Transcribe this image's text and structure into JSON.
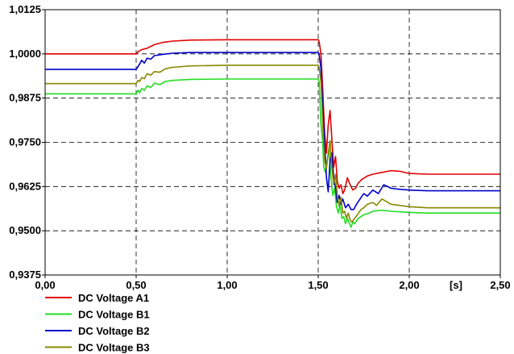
{
  "chart_data": {
    "type": "line",
    "title": "",
    "xlabel": "[s]",
    "ylabel": "",
    "xlim": [
      0,
      2.5
    ],
    "ylim": [
      0.9375,
      1.0125
    ],
    "grid": true,
    "legend_position": "bottom-left",
    "x_ticks": [
      {
        "value": 0.0,
        "label": "0,00"
      },
      {
        "value": 0.5,
        "label": "0,50"
      },
      {
        "value": 1.0,
        "label": "1,00"
      },
      {
        "value": 1.5,
        "label": "1,50"
      },
      {
        "value": 2.0,
        "label": "2,00"
      },
      {
        "value": 2.5,
        "label": "2,50"
      }
    ],
    "y_ticks": [
      {
        "value": 0.9375,
        "label": "0,9375"
      },
      {
        "value": 0.95,
        "label": "0,9500"
      },
      {
        "value": 0.9625,
        "label": "0,9625"
      },
      {
        "value": 0.975,
        "label": "0,9750"
      },
      {
        "value": 0.9875,
        "label": "0,9875"
      },
      {
        "value": 1.0,
        "label": "1,0000"
      },
      {
        "value": 1.0125,
        "label": "1,0125"
      }
    ],
    "series": [
      {
        "name": "DC Voltage A1",
        "color": "#e00000",
        "points": [
          [
            0,
            1.0
          ],
          [
            0.5,
            1.0
          ],
          [
            0.51,
            1.0006
          ],
          [
            0.53,
            1.0012
          ],
          [
            0.56,
            1.0016
          ],
          [
            0.6,
            1.0026
          ],
          [
            0.65,
            1.0033
          ],
          [
            0.7,
            1.0036
          ],
          [
            0.8,
            1.0039
          ],
          [
            1.0,
            1.004
          ],
          [
            1.5,
            1.004
          ],
          [
            1.505,
            1.0035
          ],
          [
            1.515,
            1.0
          ],
          [
            1.525,
            0.99
          ],
          [
            1.535,
            0.978
          ],
          [
            1.545,
            0.972
          ],
          [
            1.555,
            0.98
          ],
          [
            1.565,
            0.984
          ],
          [
            1.575,
            0.976
          ],
          [
            1.585,
            0.968
          ],
          [
            1.595,
            0.971
          ],
          [
            1.605,
            0.964
          ],
          [
            1.615,
            0.962
          ],
          [
            1.625,
            0.963
          ],
          [
            1.635,
            0.9605
          ],
          [
            1.645,
            0.9615
          ],
          [
            1.66,
            0.965
          ],
          [
            1.675,
            0.963
          ],
          [
            1.69,
            0.9615
          ],
          [
            1.705,
            0.962
          ],
          [
            1.72,
            0.9635
          ],
          [
            1.74,
            0.9645
          ],
          [
            1.77,
            0.9655
          ],
          [
            1.8,
            0.966
          ],
          [
            1.85,
            0.9665
          ],
          [
            1.9,
            0.967
          ],
          [
            1.95,
            0.9668
          ],
          [
            2.0,
            0.9662
          ],
          [
            2.1,
            0.966
          ],
          [
            2.5,
            0.966
          ]
        ]
      },
      {
        "name": "DC Voltage B1",
        "color": "#22dd22",
        "points": [
          [
            0,
            0.9887
          ],
          [
            0.5,
            0.9887
          ],
          [
            0.51,
            0.9897
          ],
          [
            0.52,
            0.989
          ],
          [
            0.53,
            0.9902
          ],
          [
            0.545,
            0.9897
          ],
          [
            0.56,
            0.991
          ],
          [
            0.58,
            0.9905
          ],
          [
            0.6,
            0.9917
          ],
          [
            0.63,
            0.9913
          ],
          [
            0.66,
            0.9922
          ],
          [
            0.7,
            0.9925
          ],
          [
            0.8,
            0.9928
          ],
          [
            1.0,
            0.9929
          ],
          [
            1.5,
            0.9929
          ],
          [
            1.505,
            0.9922
          ],
          [
            1.515,
            0.98
          ],
          [
            1.525,
            0.975
          ],
          [
            1.53,
            0.968
          ],
          [
            1.54,
            0.9665
          ],
          [
            1.55,
            0.97
          ],
          [
            1.56,
            0.973
          ],
          [
            1.57,
            0.965
          ],
          [
            1.58,
            0.96
          ],
          [
            1.59,
            0.962
          ],
          [
            1.6,
            0.957
          ],
          [
            1.61,
            0.955
          ],
          [
            1.62,
            0.9575
          ],
          [
            1.63,
            0.9535
          ],
          [
            1.64,
            0.954
          ],
          [
            1.65,
            0.952
          ],
          [
            1.66,
            0.9535
          ],
          [
            1.67,
            0.9522
          ],
          [
            1.68,
            0.951
          ],
          [
            1.69,
            0.9525
          ],
          [
            1.7,
            0.952
          ],
          [
            1.72,
            0.9535
          ],
          [
            1.75,
            0.9545
          ],
          [
            1.78,
            0.955
          ],
          [
            1.8,
            0.9555
          ],
          [
            1.85,
            0.9558
          ],
          [
            1.9,
            0.9555
          ],
          [
            2.0,
            0.9552
          ],
          [
            2.1,
            0.955
          ],
          [
            2.5,
            0.955
          ]
        ]
      },
      {
        "name": "DC Voltage B2",
        "color": "#0000cc",
        "points": [
          [
            0,
            0.9956
          ],
          [
            0.5,
            0.9956
          ],
          [
            0.51,
            0.9964
          ],
          [
            0.52,
            0.9972
          ],
          [
            0.53,
            0.9982
          ],
          [
            0.545,
            0.9974
          ],
          [
            0.56,
            0.9988
          ],
          [
            0.58,
            0.9985
          ],
          [
            0.6,
            0.9995
          ],
          [
            0.65,
            0.9999
          ],
          [
            0.7,
            1.0002
          ],
          [
            0.8,
            1.0004
          ],
          [
            1.0,
            1.0004
          ],
          [
            1.5,
            1.0004
          ],
          [
            1.505,
            0.9998
          ],
          [
            1.515,
            0.996
          ],
          [
            1.525,
            0.985
          ],
          [
            1.535,
            0.975
          ],
          [
            1.545,
            0.965
          ],
          [
            1.555,
            0.961
          ],
          [
            1.565,
            0.97
          ],
          [
            1.575,
            0.972
          ],
          [
            1.585,
            0.965
          ],
          [
            1.595,
            0.962
          ],
          [
            1.605,
            0.958
          ],
          [
            1.615,
            0.96
          ],
          [
            1.625,
            0.9575
          ],
          [
            1.635,
            0.959
          ],
          [
            1.65,
            0.9565
          ],
          [
            1.665,
            0.9575
          ],
          [
            1.68,
            0.956
          ],
          [
            1.695,
            0.956
          ],
          [
            1.71,
            0.9575
          ],
          [
            1.73,
            0.959
          ],
          [
            1.75,
            0.9605
          ],
          [
            1.77,
            0.9598
          ],
          [
            1.8,
            0.9615
          ],
          [
            1.83,
            0.9605
          ],
          [
            1.86,
            0.963
          ],
          [
            1.9,
            0.962
          ],
          [
            1.95,
            0.9617
          ],
          [
            2.0,
            0.9615
          ],
          [
            2.1,
            0.9613
          ],
          [
            2.5,
            0.9613
          ]
        ]
      },
      {
        "name": "DC Voltage B3",
        "color": "#888800",
        "points": [
          [
            0,
            0.9916
          ],
          [
            0.5,
            0.9916
          ],
          [
            0.51,
            0.9925
          ],
          [
            0.52,
            0.9922
          ],
          [
            0.53,
            0.9933
          ],
          [
            0.545,
            0.993
          ],
          [
            0.56,
            0.9944
          ],
          [
            0.58,
            0.994
          ],
          [
            0.6,
            0.995
          ],
          [
            0.63,
            0.9948
          ],
          [
            0.66,
            0.9958
          ],
          [
            0.7,
            0.9962
          ],
          [
            0.8,
            0.9966
          ],
          [
            1.0,
            0.9968
          ],
          [
            1.5,
            0.9968
          ],
          [
            1.505,
            0.9962
          ],
          [
            1.515,
            0.992
          ],
          [
            1.525,
            0.98
          ],
          [
            1.535,
            0.97
          ],
          [
            1.545,
            0.9675
          ],
          [
            1.555,
            0.972
          ],
          [
            1.565,
            0.9755
          ],
          [
            1.575,
            0.968
          ],
          [
            1.585,
            0.963
          ],
          [
            1.595,
            0.966
          ],
          [
            1.605,
            0.96
          ],
          [
            1.615,
            0.957
          ],
          [
            1.625,
            0.9595
          ],
          [
            1.635,
            0.955
          ],
          [
            1.645,
            0.9555
          ],
          [
            1.655,
            0.9535
          ],
          [
            1.665,
            0.955
          ],
          [
            1.675,
            0.953
          ],
          [
            1.685,
            0.9525
          ],
          [
            1.7,
            0.9535
          ],
          [
            1.715,
            0.9545
          ],
          [
            1.735,
            0.956
          ],
          [
            1.75,
            0.9565
          ],
          [
            1.77,
            0.9575
          ],
          [
            1.8,
            0.958
          ],
          [
            1.82,
            0.9572
          ],
          [
            1.85,
            0.959
          ],
          [
            1.9,
            0.9575
          ],
          [
            2.0,
            0.9568
          ],
          [
            2.1,
            0.9565
          ],
          [
            2.5,
            0.9565
          ]
        ]
      }
    ]
  }
}
